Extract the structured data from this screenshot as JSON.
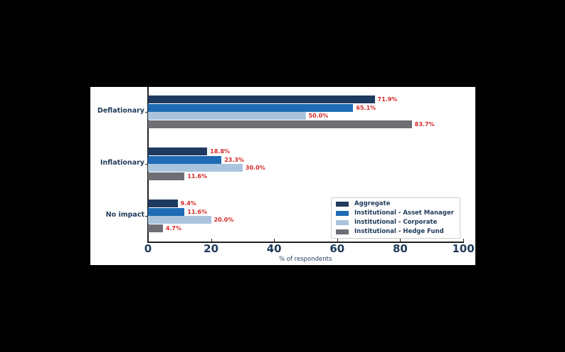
{
  "chart_data": {
    "type": "bar",
    "orientation": "horizontal",
    "title": "",
    "xlabel": "% of respondents",
    "ylabel": "",
    "xlim": [
      0,
      100
    ],
    "x_ticks": [
      "0",
      "20",
      "40",
      "60",
      "80",
      "100"
    ],
    "grid": false,
    "legend_position": "lower right",
    "categories": [
      "Deflationary",
      "Inflationary",
      "No impact"
    ],
    "series": [
      {
        "name": "Aggregate",
        "color": "#1f3a5f",
        "values": [
          71.9,
          18.8,
          9.4
        ],
        "labels": [
          "71.9%",
          "18.8%",
          "9.4%"
        ]
      },
      {
        "name": "Institutional - Asset Manager",
        "color": "#1f6bb5",
        "values": [
          65.1,
          23.3,
          11.6
        ],
        "labels": [
          "65.1%",
          "23.3%",
          "11.6%"
        ]
      },
      {
        "name": "Institutional - Corporate",
        "color": "#aac4de",
        "values": [
          50.0,
          30.0,
          20.0
        ],
        "labels": [
          "50.0%",
          "30.0%",
          "20.0%"
        ]
      },
      {
        "name": "Institutional - Hedge Fund",
        "color": "#6e6e75",
        "values": [
          83.7,
          11.6,
          4.7
        ],
        "labels": [
          "83.7%",
          "11.6%",
          "4.7%"
        ]
      }
    ],
    "value_label_color": "#d62728"
  }
}
